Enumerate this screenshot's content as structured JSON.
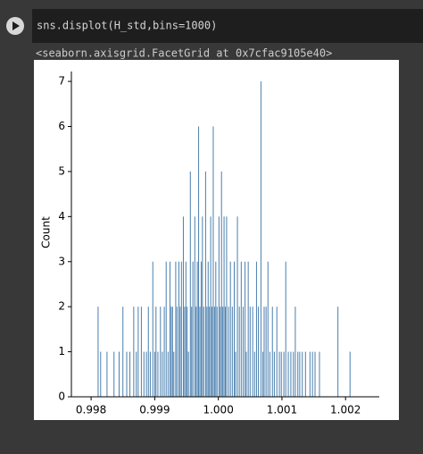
{
  "cell": {
    "code": "sns.displot(H_std,bins=1000)",
    "output": "<seaborn.axisgrid.FacetGrid at 0x7cfac9105e40>"
  },
  "chart_data": {
    "type": "bar",
    "ylabel": "Count",
    "color": "#4a7fae",
    "x": [
      0.99811,
      0.99815,
      0.99825,
      0.99836,
      0.99844,
      0.9985,
      0.99856,
      0.99861,
      0.99867,
      0.99871,
      0.99874,
      0.99879,
      0.99883,
      0.99887,
      0.9989,
      0.99893,
      0.99897,
      0.999,
      0.99902,
      0.99905,
      0.99909,
      0.99912,
      0.99915,
      0.99918,
      0.99921,
      0.99924,
      0.99926,
      0.99928,
      0.9993,
      0.99933,
      0.99935,
      0.99938,
      0.9994,
      0.99942,
      0.99945,
      0.99947,
      0.99949,
      0.99951,
      0.99953,
      0.99956,
      0.99958,
      0.9996,
      0.99963,
      0.99965,
      0.99967,
      0.99969,
      0.99971,
      0.99973,
      0.99975,
      0.99977,
      0.9998,
      0.99982,
      0.99984,
      0.99986,
      0.99988,
      0.9999,
      0.99992,
      0.99994,
      0.99996,
      0.99998,
      1.00001,
      1.00003,
      1.00005,
      1.00007,
      1.00009,
      1.00011,
      1.00013,
      1.00016,
      1.00019,
      1.00022,
      1.00025,
      1.00027,
      1.0003,
      1.00033,
      1.00036,
      1.00039,
      1.00042,
      1.00044,
      1.00047,
      1.0005,
      1.00054,
      1.00057,
      1.0006,
      1.00063,
      1.00067,
      1.0007,
      1.00072,
      1.00075,
      1.00078,
      1.00081,
      1.00085,
      1.00088,
      1.00092,
      1.00096,
      1.00099,
      1.00103,
      1.00106,
      1.0011,
      1.00114,
      1.00118,
      1.00121,
      1.00125,
      1.00128,
      1.00132,
      1.00137,
      1.00144,
      1.00148,
      1.00152,
      1.00159,
      1.00188,
      1.00207
    ],
    "values": [
      2,
      1,
      1,
      1,
      1,
      2,
      1,
      1,
      2,
      1,
      2,
      2,
      1,
      1,
      2,
      1,
      3,
      1,
      2,
      1,
      2,
      1,
      2,
      3,
      1,
      3,
      2,
      2,
      1,
      3,
      2,
      3,
      2,
      3,
      4,
      2,
      3,
      2,
      1,
      5,
      2,
      3,
      4,
      2,
      3,
      6,
      2,
      3,
      4,
      2,
      5,
      2,
      3,
      2,
      4,
      2,
      6,
      2,
      3,
      2,
      4,
      2,
      5,
      2,
      4,
      2,
      4,
      2,
      3,
      2,
      3,
      1,
      4,
      2,
      3,
      2,
      3,
      1,
      3,
      2,
      2,
      1,
      3,
      2,
      7,
      1,
      2,
      2,
      3,
      1,
      2,
      1,
      2,
      1,
      1,
      1,
      3,
      1,
      1,
      1,
      2,
      1,
      1,
      1,
      1,
      1,
      1,
      1,
      1,
      2,
      1
    ],
    "xlim": [
      0.99769,
      1.00253
    ],
    "ylim": [
      0,
      7.22
    ],
    "xticks": [
      0.998,
      0.999,
      {
        "value": 1,
        "label": "1.000"
      },
      1.001,
      1.002
    ],
    "yticks": [
      0,
      1,
      2,
      3,
      4,
      5,
      6,
      7
    ]
  }
}
